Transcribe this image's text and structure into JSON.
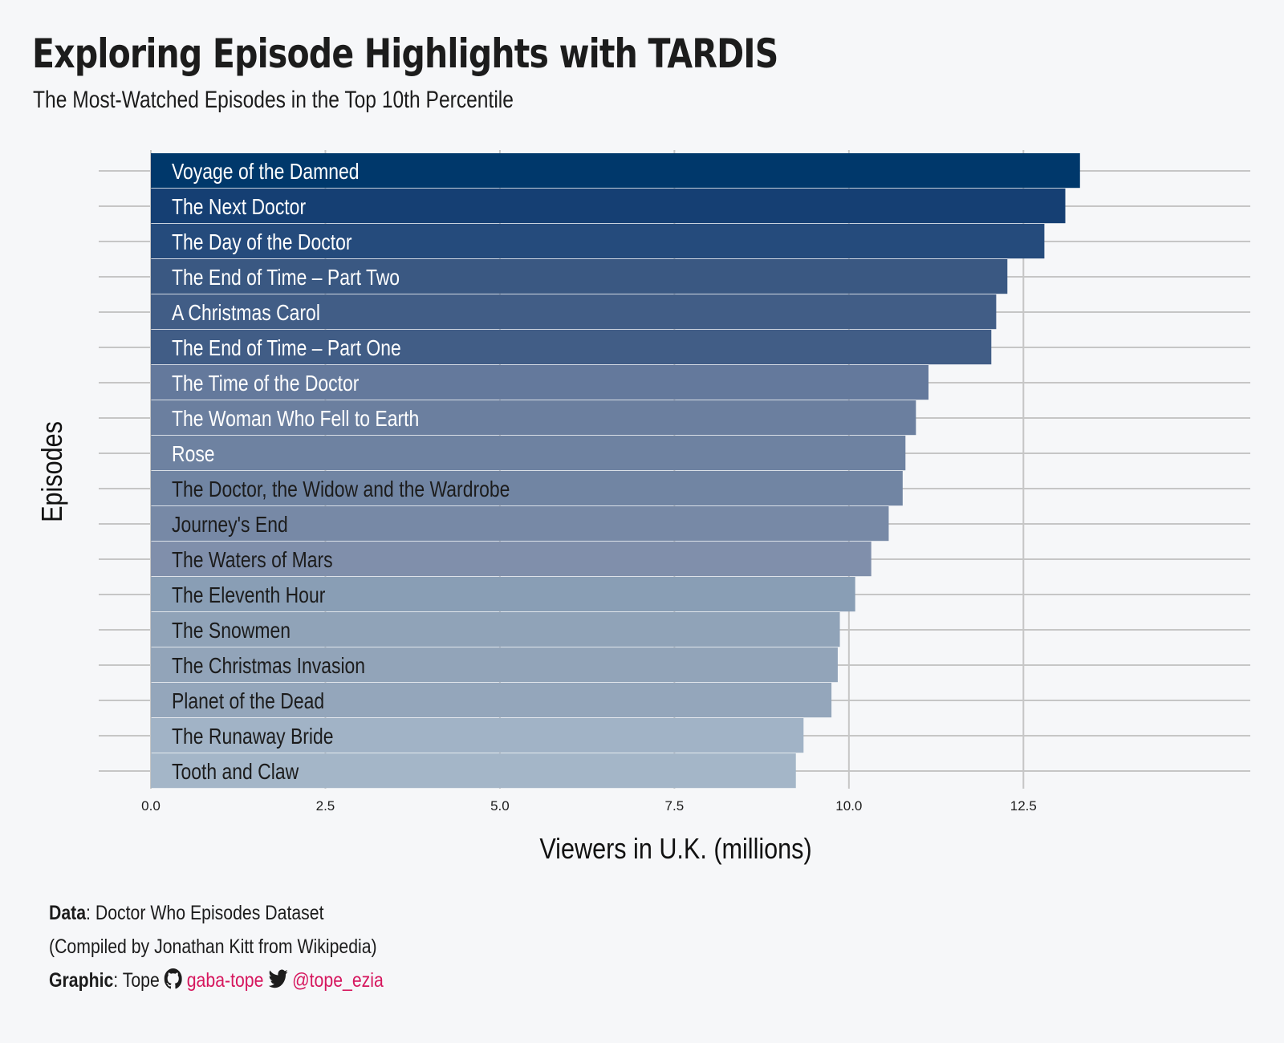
{
  "header": {
    "title": "Exploring Episode Highlights with TARDIS",
    "subtitle": "The Most-Watched Episodes in the Top 10th Percentile"
  },
  "chart_data": {
    "type": "bar",
    "orientation": "horizontal",
    "xlabel": "Viewers in U.K. (millions)",
    "ylabel": "Episodes",
    "xlim": [
      0,
      15.75
    ],
    "xticks": [
      0,
      2.5,
      5,
      7.5,
      10,
      12.5
    ],
    "xtick_labels": [
      "0.0",
      "2.5",
      "5.0",
      "7.5",
      "10.0",
      "12.5"
    ],
    "grid": true,
    "categories": [
      "Voyage of the Damned",
      "The Next Doctor",
      "The Day of the Doctor",
      "The End of Time – Part Two",
      "A Christmas Carol",
      "The End of Time – Part One",
      "The Time of the Doctor",
      "The Woman Who Fell to Earth",
      "Rose",
      "The Doctor, the Widow and the Wardrobe",
      "Journey's End",
      "The Waters of Mars",
      "The Eleventh Hour",
      "The Snowmen",
      "The Christmas Invasion",
      "Planet of the Dead",
      "The Runaway Bride",
      "Tooth and Claw"
    ],
    "values": [
      13.31,
      13.1,
      12.8,
      12.27,
      12.11,
      12.04,
      11.14,
      10.96,
      10.81,
      10.77,
      10.57,
      10.32,
      10.09,
      9.87,
      9.84,
      9.75,
      9.35,
      9.24
    ],
    "bar_colors": [
      "#00386b",
      "#153f73",
      "#254b7c",
      "#3a5882",
      "#415d86",
      "#415d86",
      "#64799c",
      "#6b7f9f",
      "#6e82a1",
      "#7185a3",
      "#7789a6",
      "#808fab",
      "#899eb5",
      "#90a3b8",
      "#92a4b9",
      "#94a6bb",
      "#a1b3c6",
      "#a4b6c8"
    ],
    "label_colors": [
      "#ffffff",
      "#ffffff",
      "#ffffff",
      "#ffffff",
      "#ffffff",
      "#ffffff",
      "#ffffff",
      "#ffffff",
      "#ffffff",
      "#1c1c1c",
      "#1c1c1c",
      "#1c1c1c",
      "#1c1c1c",
      "#1c1c1c",
      "#1c1c1c",
      "#1c1c1c",
      "#1c1c1c",
      "#1c1c1c"
    ]
  },
  "caption": {
    "data_label": "Data",
    "data_text": ": Doctor Who Episodes Dataset",
    "compiled_text": "(Compiled by Jonathan Kitt from Wikipedia)",
    "graphic_label": "Graphic",
    "graphic_text": ": Tope",
    "github_icon": "github-icon",
    "github_handle": "gaba-tope",
    "twitter_icon": "twitter-icon",
    "twitter_handle": "@tope_ezia",
    "accent_color": "#d6175e"
  }
}
